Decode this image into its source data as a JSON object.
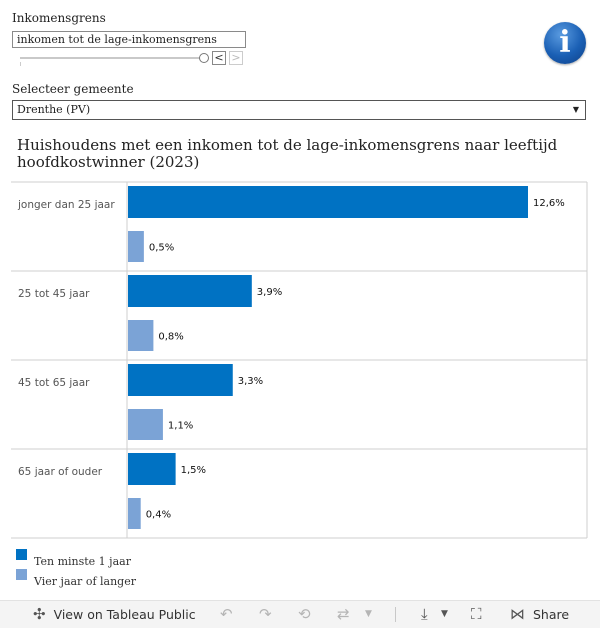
{
  "filter": {
    "title": "Inkomensgrens",
    "value": "inkomen tot de lage-inkomensgrens",
    "prev_symbol": "<",
    "next_symbol": ">",
    "slider_position": 1.0
  },
  "info_icon_symbol": "i",
  "select": {
    "title": "Selecteer gemeente",
    "value": "Drenthe (PV)",
    "arrow": "▼"
  },
  "chart_data": {
    "type": "bar",
    "orientation": "horizontal",
    "title": "Huishoudens met een inkomen tot de lage-inkomensgrens naar leeftijd hoofdkostwinner (2023)",
    "categories": [
      "jonger dan 25 jaar",
      "25 tot 45 jaar",
      "45 tot 65 jaar",
      "65 jaar of ouder"
    ],
    "series": [
      {
        "name": "Ten minste 1 jaar",
        "color": "#0072c3",
        "values": [
          12.6,
          3.9,
          3.3,
          1.5
        ],
        "labels": [
          "12,6%",
          "3,9%",
          "3,3%",
          "1,5%"
        ]
      },
      {
        "name": "Vier jaar of langer",
        "color": "#7ba3d6",
        "values": [
          0.5,
          0.8,
          1.1,
          0.4
        ],
        "labels": [
          "0,5%",
          "0,8%",
          "1,1%",
          "0,4%"
        ]
      }
    ],
    "xlim": [
      0,
      12.6
    ],
    "grid": false,
    "legend_position": "bottom-left"
  },
  "toolbar": {
    "view_label": "View on Tableau Public",
    "share_label": "Share",
    "icons": [
      "tableau-icon",
      "undo-icon",
      "redo-icon",
      "revert-icon",
      "refresh-icon",
      "pause-icon",
      "download-icon",
      "fullscreen-icon",
      "share-icon"
    ]
  }
}
